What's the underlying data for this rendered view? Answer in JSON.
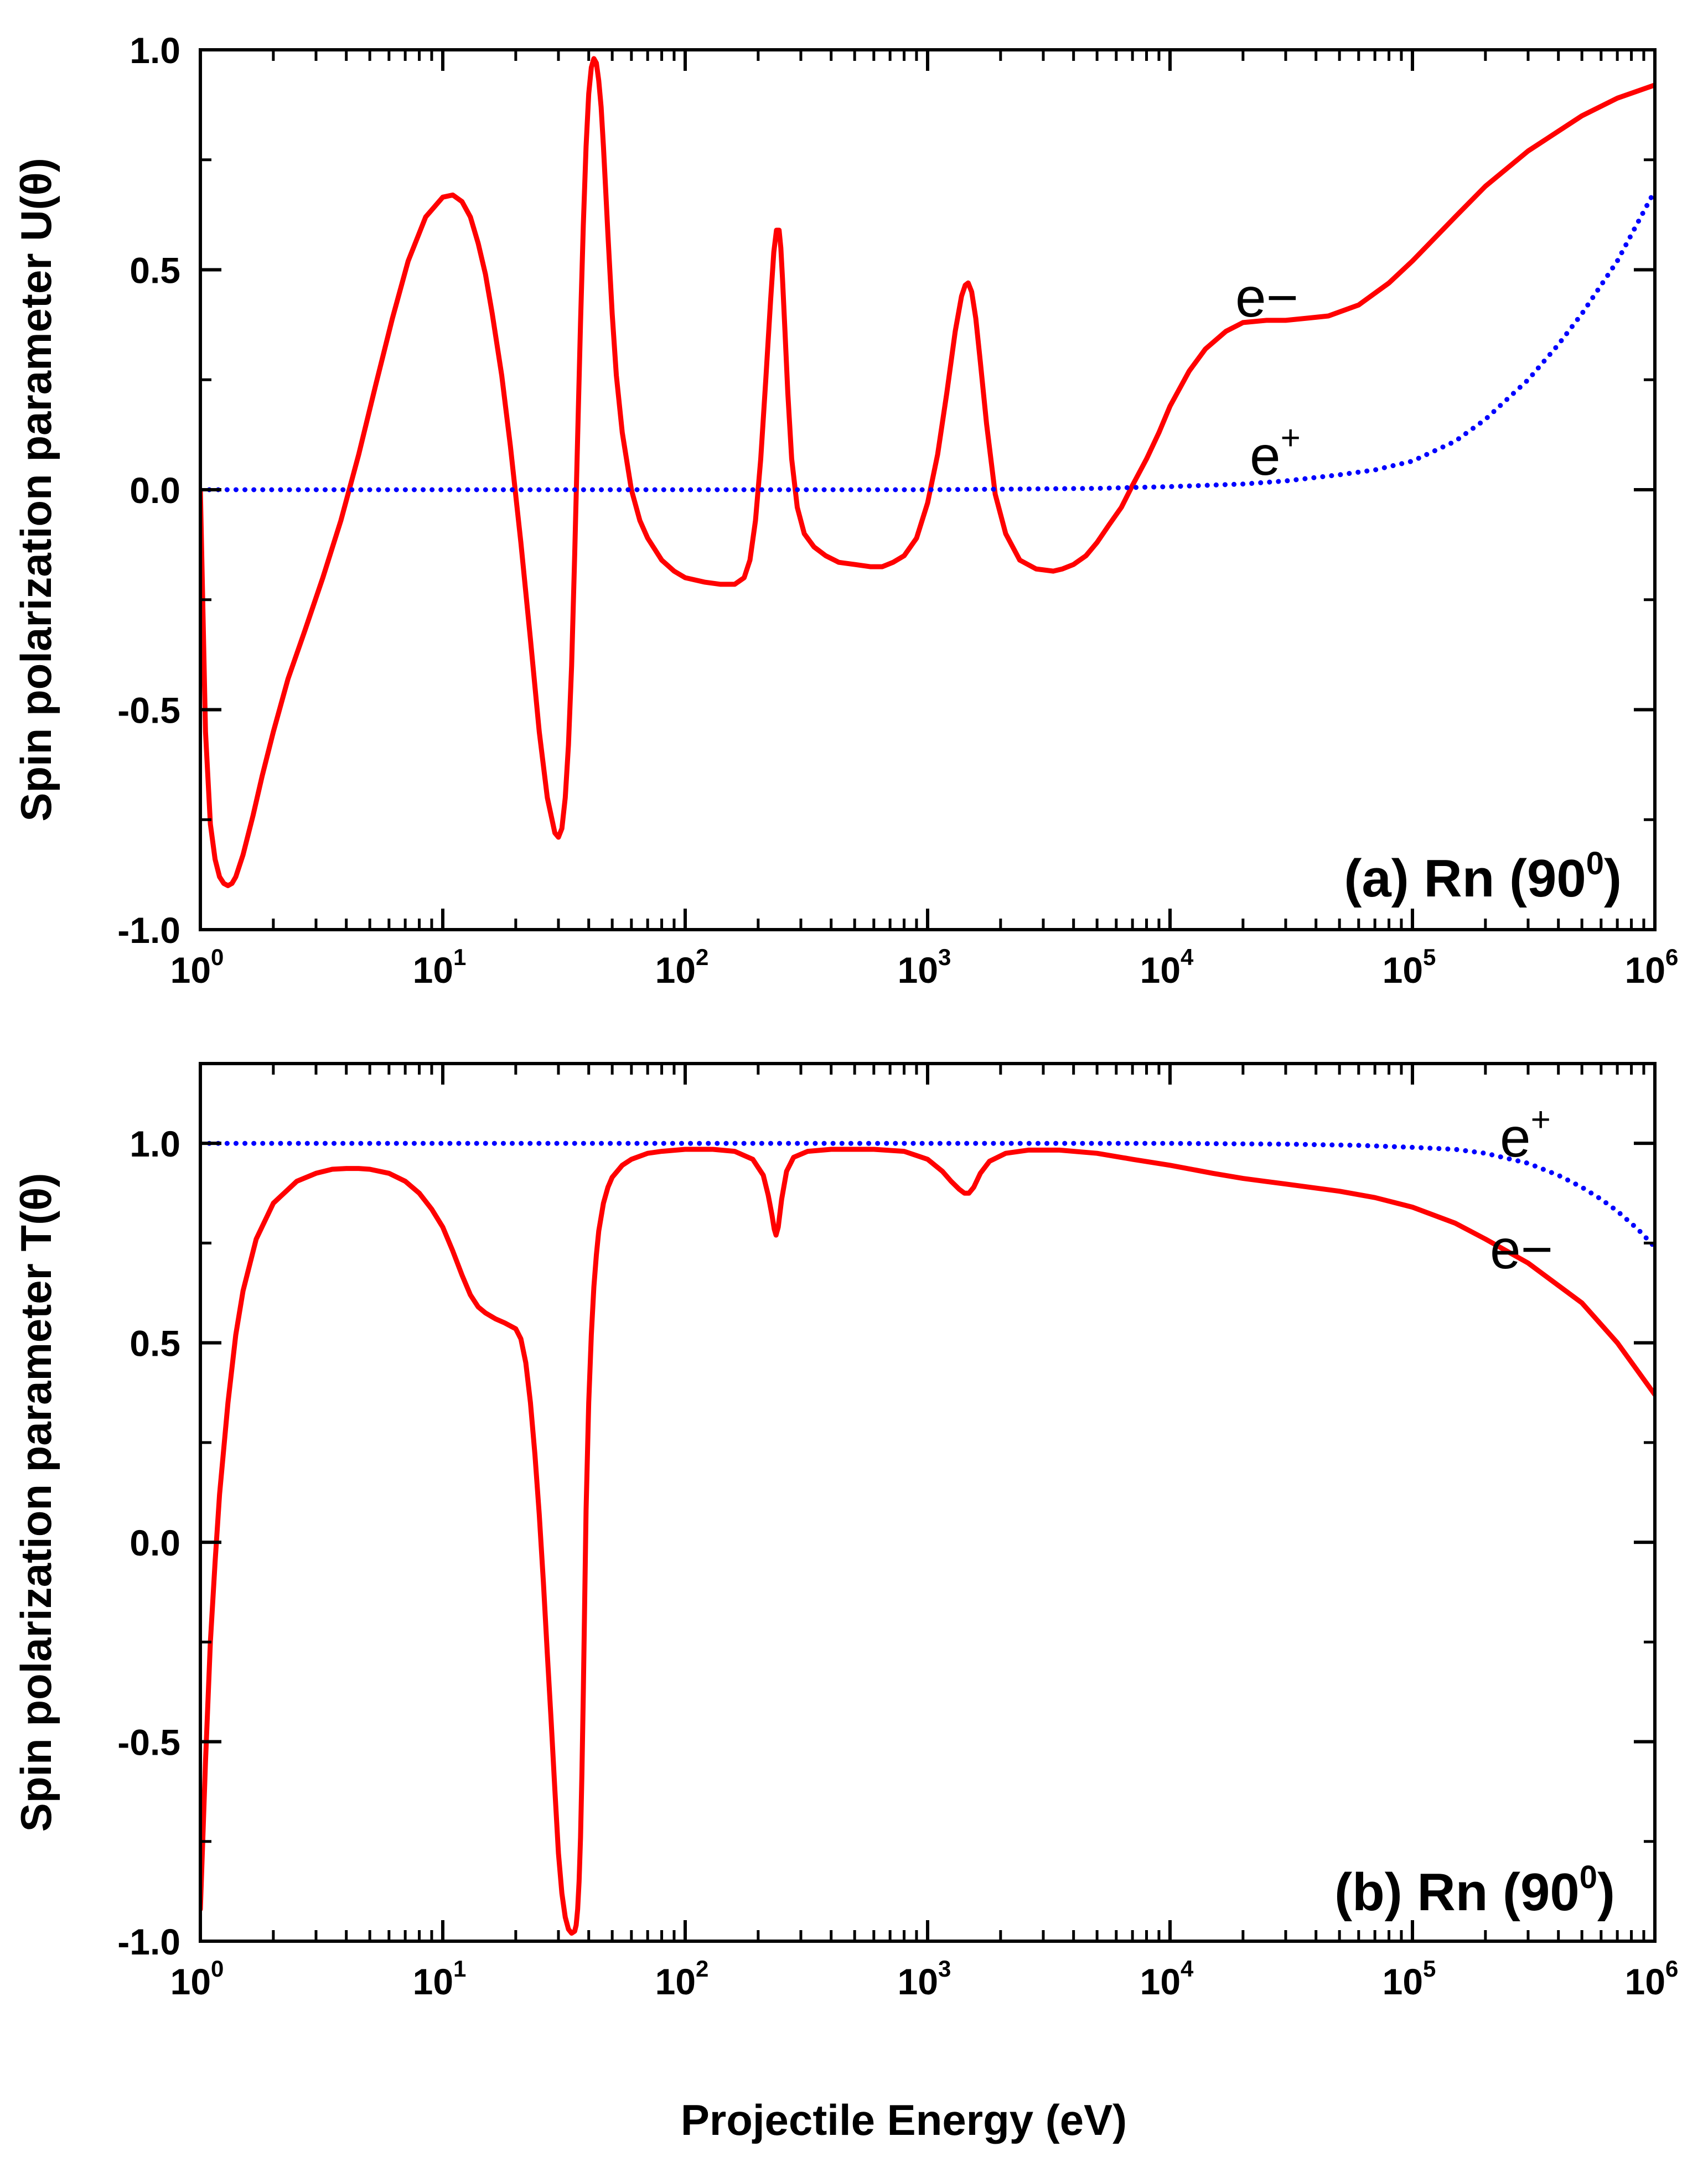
{
  "figure": {
    "xlabel": "Projectile Energy (eV)"
  },
  "chart_data": [
    {
      "type": "line",
      "panel": "a",
      "ylabel": "Spin polarization parameter U(θ)",
      "panel_label": "(a) Rn (90",
      "panel_label_sup": "0",
      "panel_label_end": ")",
      "xscale": "log",
      "xlim": [
        1,
        1000000
      ],
      "ylim": [
        -1.0,
        1.0
      ],
      "x_tick_base": "10",
      "x_tick_exponents": [
        "0",
        "1",
        "2",
        "3",
        "4",
        "5",
        "6"
      ],
      "y_ticks": [
        -1.0,
        -0.5,
        0.0,
        0.5,
        1.0
      ],
      "y_tick_labels": [
        "-1.0",
        "-0.5",
        "0.0",
        "0.5",
        "1.0"
      ],
      "series": [
        {
          "name": "e−",
          "label": "e−",
          "label_sup": "",
          "color": "#ff0000",
          "style": "solid",
          "x": [
            1,
            1.05,
            1.1,
            1.15,
            1.2,
            1.25,
            1.3,
            1.35,
            1.4,
            1.5,
            1.65,
            1.8,
            2,
            2.3,
            2.7,
            3.2,
            3.8,
            4.5,
            5.3,
            6.2,
            7.2,
            8.5,
            10,
            11,
            12,
            13,
            14,
            15,
            16,
            17.5,
            19,
            21,
            23,
            25,
            27,
            29,
            30,
            31,
            32,
            33,
            34,
            35,
            36,
            37,
            38,
            39,
            40,
            41,
            42,
            43,
            44,
            45,
            46,
            47,
            48,
            50,
            52,
            55,
            60,
            65,
            70,
            80,
            90,
            100,
            120,
            140,
            160,
            175,
            185,
            195,
            205,
            215,
            225,
            232,
            238,
            244,
            248,
            252,
            258,
            265,
            275,
            290,
            310,
            340,
            380,
            430,
            500,
            580,
            650,
            720,
            800,
            900,
            1000,
            1100,
            1200,
            1300,
            1380,
            1430,
            1470,
            1520,
            1580,
            1650,
            1750,
            1900,
            2100,
            2400,
            2800,
            3300,
            3600,
            4000,
            4500,
            5000,
            5600,
            6300,
            7000,
            8000,
            9000,
            10000,
            12000,
            14000,
            17000,
            20000,
            25000,
            30000,
            37000,
            45000,
            60000,
            80000,
            100000,
            150000,
            200000,
            300000,
            500000,
            700000,
            1000000
          ],
          "y": [
            0.0,
            -0.55,
            -0.76,
            -0.84,
            -0.88,
            -0.895,
            -0.9,
            -0.895,
            -0.88,
            -0.83,
            -0.74,
            -0.65,
            -0.55,
            -0.43,
            -0.32,
            -0.2,
            -0.07,
            0.08,
            0.24,
            0.39,
            0.52,
            0.62,
            0.665,
            0.67,
            0.655,
            0.62,
            0.56,
            0.49,
            0.4,
            0.26,
            0.1,
            -0.12,
            -0.34,
            -0.55,
            -0.7,
            -0.78,
            -0.79,
            -0.77,
            -0.7,
            -0.58,
            -0.4,
            -0.15,
            0.12,
            0.38,
            0.6,
            0.78,
            0.9,
            0.96,
            0.98,
            0.97,
            0.93,
            0.87,
            0.78,
            0.68,
            0.58,
            0.4,
            0.26,
            0.13,
            0.0,
            -0.07,
            -0.11,
            -0.16,
            -0.185,
            -0.2,
            -0.21,
            -0.215,
            -0.215,
            -0.2,
            -0.16,
            -0.07,
            0.07,
            0.25,
            0.43,
            0.54,
            0.59,
            0.59,
            0.55,
            0.48,
            0.36,
            0.22,
            0.07,
            -0.04,
            -0.1,
            -0.13,
            -0.15,
            -0.165,
            -0.17,
            -0.175,
            -0.175,
            -0.165,
            -0.15,
            -0.11,
            -0.03,
            0.08,
            0.22,
            0.36,
            0.44,
            0.465,
            0.47,
            0.45,
            0.39,
            0.29,
            0.15,
            -0.01,
            -0.1,
            -0.16,
            -0.18,
            -0.185,
            -0.18,
            -0.17,
            -0.15,
            -0.12,
            -0.08,
            -0.04,
            0.01,
            0.07,
            0.13,
            0.19,
            0.27,
            0.32,
            0.36,
            0.38,
            0.385,
            0.385,
            0.39,
            0.395,
            0.42,
            0.47,
            0.52,
            0.62,
            0.69,
            0.77,
            0.85,
            0.89,
            0.92
          ]
        },
        {
          "name": "e+",
          "label": "e",
          "label_sup": "+",
          "color": "#0000ff",
          "style": "dotted",
          "x": [
            1,
            10,
            100,
            1000,
            5000,
            10000,
            20000,
            30000,
            50000,
            70000,
            100000,
            150000,
            200000,
            300000,
            400000,
            500000,
            700000,
            1000000
          ],
          "y": [
            0.0,
            0.0,
            0.0,
            0.0,
            0.003,
            0.007,
            0.013,
            0.02,
            0.034,
            0.045,
            0.065,
            0.11,
            0.16,
            0.25,
            0.33,
            0.4,
            0.52,
            0.68
          ]
        }
      ]
    },
    {
      "type": "line",
      "panel": "b",
      "ylabel": "Spin polarization parameter T(θ)",
      "panel_label": "(b) Rn (90",
      "panel_label_sup": "0",
      "panel_label_end": ")",
      "xscale": "log",
      "xlim": [
        1,
        1000000
      ],
      "ylim": [
        -1.0,
        1.2
      ],
      "x_tick_base": "10",
      "x_tick_exponents": [
        "0",
        "1",
        "2",
        "3",
        "4",
        "5",
        "6"
      ],
      "y_ticks": [
        -1.0,
        -0.5,
        0.0,
        0.5,
        1.0
      ],
      "y_tick_labels": [
        "-1.0",
        "-0.5",
        "0.0",
        "0.5",
        "1.0"
      ],
      "series": [
        {
          "name": "e+",
          "label": "e",
          "label_sup": "+",
          "color": "#0000ff",
          "style": "dotted",
          "x": [
            1,
            10,
            100,
            1000,
            10000,
            30000,
            60000,
            100000,
            150000,
            200000,
            300000,
            400000,
            500000,
            600000,
            700000,
            850000,
            1000000
          ],
          "y": [
            1.0,
            1.0,
            1.0,
            1.0,
            1.0,
            0.998,
            0.995,
            0.99,
            0.985,
            0.975,
            0.95,
            0.92,
            0.89,
            0.86,
            0.83,
            0.785,
            0.74
          ]
        },
        {
          "name": "e−",
          "label": "e−",
          "label_sup": "",
          "color": "#ff0000",
          "style": "solid",
          "x": [
            1,
            1.05,
            1.1,
            1.15,
            1.2,
            1.3,
            1.4,
            1.5,
            1.7,
            2,
            2.5,
            3,
            3.5,
            4,
            4.5,
            5,
            6,
            7,
            8,
            9,
            10,
            11,
            12,
            13,
            14,
            15,
            16.5,
            18,
            20,
            21,
            22,
            23,
            24,
            25,
            26,
            27,
            28,
            29,
            30,
            31,
            32,
            33,
            34,
            35,
            35.5,
            36,
            36.5,
            37,
            37.5,
            38,
            38.5,
            39,
            40,
            41,
            42,
            43,
            44,
            46,
            48,
            50,
            55,
            60,
            70,
            80,
            100,
            130,
            160,
            190,
            210,
            220,
            228,
            233,
            237,
            242,
            250,
            262,
            280,
            320,
            400,
            600,
            800,
            1000,
            1150,
            1250,
            1350,
            1420,
            1480,
            1550,
            1650,
            1800,
            2100,
            2600,
            3500,
            5000,
            7000,
            10000,
            15000,
            20000,
            30000,
            50000,
            70000,
            100000,
            150000,
            200000,
            300000,
            500000,
            700000,
            1000000
          ],
          "y": [
            -0.92,
            -0.55,
            -0.25,
            -0.05,
            0.12,
            0.35,
            0.52,
            0.63,
            0.76,
            0.85,
            0.905,
            0.925,
            0.935,
            0.937,
            0.937,
            0.935,
            0.925,
            0.905,
            0.875,
            0.835,
            0.79,
            0.73,
            0.67,
            0.62,
            0.59,
            0.575,
            0.56,
            0.55,
            0.535,
            0.51,
            0.45,
            0.35,
            0.22,
            0.07,
            -0.1,
            -0.28,
            -0.45,
            -0.62,
            -0.78,
            -0.88,
            -0.94,
            -0.97,
            -0.98,
            -0.975,
            -0.96,
            -0.92,
            -0.85,
            -0.74,
            -0.58,
            -0.38,
            -0.15,
            0.08,
            0.35,
            0.52,
            0.64,
            0.72,
            0.78,
            0.85,
            0.89,
            0.915,
            0.945,
            0.96,
            0.975,
            0.98,
            0.985,
            0.985,
            0.98,
            0.96,
            0.92,
            0.87,
            0.82,
            0.785,
            0.77,
            0.79,
            0.86,
            0.93,
            0.965,
            0.98,
            0.985,
            0.985,
            0.98,
            0.96,
            0.93,
            0.905,
            0.885,
            0.875,
            0.875,
            0.89,
            0.925,
            0.955,
            0.975,
            0.983,
            0.983,
            0.975,
            0.96,
            0.945,
            0.925,
            0.912,
            0.898,
            0.88,
            0.864,
            0.84,
            0.8,
            0.76,
            0.7,
            0.6,
            0.5,
            0.37
          ]
        }
      ]
    }
  ]
}
